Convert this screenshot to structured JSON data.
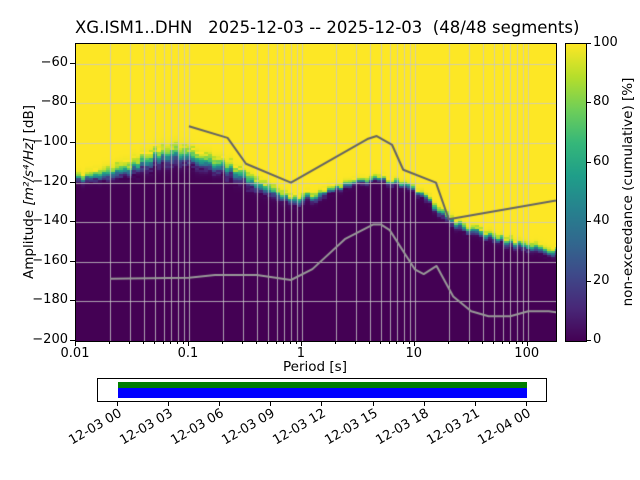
{
  "figure": {
    "kind": "ObsPy PPSD probabilistic power spectral density plot"
  },
  "chart_data": {
    "type": "heatmap",
    "title": "XG.ISM1..DHN   2025-12-03 -- 2025-12-03  (48/48 segments)",
    "station_id": "XG.ISM1..DHN",
    "date_range": "2025-12-03 -- 2025-12-03",
    "segments_used": 48,
    "segments_total": 48,
    "xlabel": "Period [s]",
    "ylabel_prefix": "Amplitude ",
    "ylabel_math": "[m²/s⁴/Hz]",
    "ylabel_suffix": " [dB]",
    "colorbar_label": "non-exceedance (cumulative) [%]",
    "x_scale": "log",
    "xlim": [
      0.01,
      178
    ],
    "ylim_db": [
      -200,
      -50
    ],
    "x_tick_values": [
      0.01,
      0.1,
      1,
      10,
      100
    ],
    "x_tick_labels": [
      "0.01",
      "0.1",
      "1",
      "10",
      "100"
    ],
    "y_tick_values": [
      -60,
      -80,
      -100,
      -120,
      -140,
      -160,
      -180,
      -200
    ],
    "y_tick_labels": [
      "−60",
      "−80",
      "−100",
      "−120",
      "−140",
      "−160",
      "−180",
      "−200"
    ],
    "colorbar_tick_values": [
      0,
      20,
      40,
      60,
      80,
      100
    ],
    "colorbar_tick_labels": [
      "0",
      "20",
      "40",
      "60",
      "80",
      "100"
    ],
    "colormap": "viridis",
    "viridis_stops": [
      "#440154",
      "#482878",
      "#3e4989",
      "#31688e",
      "#26828e",
      "#1f9e89",
      "#35b779",
      "#6ece58",
      "#b5de2b",
      "#fde725"
    ],
    "grid_color": "#c8c8c8",
    "psd_median": {
      "log10_period": [
        -2.0,
        -1.7,
        -1.52,
        -1.3,
        -1.15,
        -1.0,
        -0.82,
        -0.7,
        -0.52,
        -0.3,
        -0.15,
        -0.05,
        0.1,
        0.3,
        0.48,
        0.6,
        0.78,
        0.9,
        1.0,
        1.18,
        1.3,
        1.48,
        1.7,
        1.9,
        2.1,
        2.25
      ],
      "db": [
        -118,
        -116.5,
        -113,
        -107.5,
        -106,
        -107,
        -110,
        -112,
        -117,
        -124,
        -127.5,
        -129,
        -127.5,
        -123,
        -120,
        -118.5,
        -119,
        -121,
        -124,
        -132,
        -139,
        -144,
        -148,
        -151,
        -153.5,
        -155
      ]
    },
    "psd_spread": {
      "log10_period": [
        -2.0,
        -1.6,
        -1.15,
        -0.8,
        -0.45,
        -0.15,
        0.2,
        0.5,
        0.9,
        1.2,
        2.25
      ],
      "db": [
        3.5,
        6,
        8,
        6.5,
        6,
        4.5,
        3.5,
        2.8,
        2.8,
        3.5,
        3.5
      ]
    },
    "noise_models": {
      "nhnm": {
        "name": "high noise model",
        "color": "#646464",
        "period": [
          0.1,
          0.22,
          0.32,
          0.8,
          3.8,
          4.6,
          6.3,
          7.9,
          15.4,
          20,
          354.8
        ],
        "db": [
          -91.5,
          -97.4,
          -110.5,
          -120,
          -98,
          -96.5,
          -101,
          -113.5,
          -120,
          -138.5,
          -126
        ]
      },
      "nlnm": {
        "name": "low noise model",
        "color": "#989898",
        "period": [
          0.02,
          0.1,
          0.17,
          0.4,
          0.8,
          1.24,
          2.4,
          4.3,
          5,
          6,
          10,
          12,
          15.6,
          21.9,
          31.6,
          45,
          70,
          101,
          154,
          328
        ],
        "db": [
          -168.5,
          -168,
          -166.7,
          -166.7,
          -169.2,
          -163.7,
          -148.6,
          -141.1,
          -141.1,
          -144,
          -163.8,
          -166.2,
          -162.1,
          -177.5,
          -185,
          -187.5,
          -187.5,
          -185,
          -185,
          -187.5
        ]
      }
    }
  },
  "timeline": {
    "tick_labels": [
      "12-03 00",
      "12-03 03",
      "12-03 06",
      "12-03 09",
      "12-03 12",
      "12-03 15",
      "12-03 18",
      "12-03 21",
      "12-04 00"
    ],
    "bar": {
      "coverage_color": "#007d00",
      "data_color": "#0000ff",
      "start_frac": 0.044,
      "end_frac": 0.958
    }
  }
}
